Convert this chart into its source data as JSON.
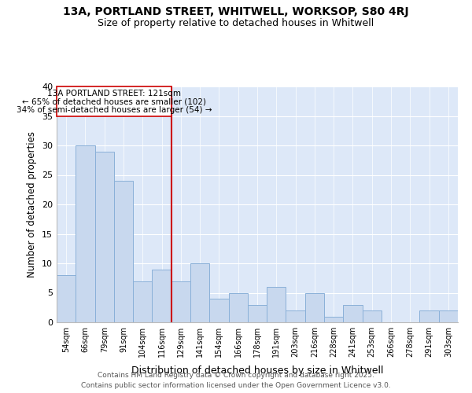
{
  "title": "13A, PORTLAND STREET, WHITWELL, WORKSOP, S80 4RJ",
  "subtitle": "Size of property relative to detached houses in Whitwell",
  "xlabel": "Distribution of detached houses by size in Whitwell",
  "ylabel": "Number of detached properties",
  "categories": [
    "54sqm",
    "66sqm",
    "79sqm",
    "91sqm",
    "104sqm",
    "116sqm",
    "129sqm",
    "141sqm",
    "154sqm",
    "166sqm",
    "178sqm",
    "191sqm",
    "203sqm",
    "216sqm",
    "228sqm",
    "241sqm",
    "253sqm",
    "266sqm",
    "278sqm",
    "291sqm",
    "303sqm"
  ],
  "values": [
    8,
    30,
    29,
    24,
    7,
    9,
    7,
    10,
    4,
    5,
    3,
    6,
    2,
    5,
    1,
    3,
    2,
    0,
    0,
    2,
    2
  ],
  "bar_color": "#c8d8ee",
  "bar_edge_color": "#8ab0d8",
  "marker_bin_index": 5,
  "marker_label": "13A PORTLAND STREET: 121sqm",
  "annotation_line1": "← 65% of detached houses are smaller (102)",
  "annotation_line2": "34% of semi-detached houses are larger (54) →",
  "marker_color": "#cc0000",
  "box_edge_color": "#cc0000",
  "background_color": "#dde8f8",
  "ylim": [
    0,
    40
  ],
  "yticks": [
    0,
    5,
    10,
    15,
    20,
    25,
    30,
    35,
    40
  ],
  "footer_line1": "Contains HM Land Registry data © Crown copyright and database right 2025.",
  "footer_line2": "Contains public sector information licensed under the Open Government Licence v3.0."
}
